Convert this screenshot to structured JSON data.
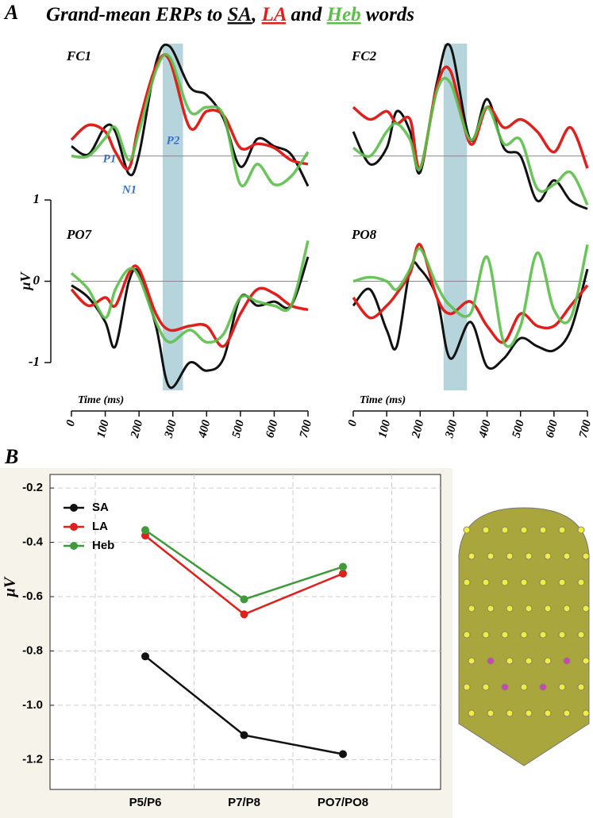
{
  "figure": {
    "panel_a_label": "A",
    "title_parts": [
      "Grand-mean ERPs to ",
      "SA",
      ", ",
      "LA",
      " and ",
      "Heb",
      " words"
    ],
    "panel_b_label": "B"
  },
  "chart_data": [
    {
      "type": "erp",
      "title": "FC1",
      "x": [
        0,
        50,
        100,
        130,
        170,
        200,
        250,
        290,
        350,
        400,
        450,
        500,
        550,
        600,
        650,
        700
      ],
      "xlim": [
        0,
        700
      ],
      "ylim": [
        -0.52,
        1.43
      ],
      "reference_line": 0,
      "highlight": [
        270,
        330
      ],
      "annotations": [
        "P1",
        "N1",
        "P2"
      ],
      "series": [
        {
          "name": "SA",
          "color": "#111111",
          "values": [
            0.12,
            0.02,
            0.36,
            0.3,
            -0.22,
            0.02,
            1.14,
            1.35,
            0.85,
            0.75,
            0.46,
            -0.13,
            0.21,
            0.12,
            0.02,
            -0.37
          ]
        },
        {
          "name": "LA",
          "color": "#e0201c",
          "values": [
            0.2,
            0.38,
            0.3,
            0.05,
            -0.15,
            0.4,
            1.1,
            1.18,
            0.35,
            0.55,
            0.5,
            0.1,
            0.15,
            0.1,
            -0.05,
            -0.1
          ]
        },
        {
          "name": "Heb",
          "color": "#5cbf4a",
          "values": [
            0.0,
            0.0,
            0.22,
            0.35,
            -0.05,
            0.3,
            1.05,
            1.22,
            0.55,
            0.6,
            0.5,
            -0.35,
            -0.1,
            -0.35,
            -0.25,
            0.05
          ]
        }
      ]
    },
    {
      "type": "erp",
      "title": "FC2",
      "x": [
        0,
        50,
        100,
        130,
        170,
        200,
        250,
        290,
        350,
        400,
        450,
        500,
        550,
        600,
        650,
        700
      ],
      "xlim": [
        0,
        700
      ],
      "ylim": [
        -0.52,
        1.43
      ],
      "reference_line": 0,
      "highlight": [
        270,
        340
      ],
      "series": [
        {
          "name": "SA",
          "color": "#111111",
          "values": [
            0.3,
            -0.1,
            0.1,
            0.55,
            0.3,
            -0.2,
            0.9,
            1.35,
            0.2,
            0.7,
            0.1,
            0.0,
            -0.55,
            -0.3,
            -0.55,
            -0.65
          ]
        },
        {
          "name": "LA",
          "color": "#e0201c",
          "values": [
            0.6,
            0.45,
            0.55,
            0.4,
            0.45,
            -0.15,
            0.85,
            1.05,
            0.15,
            0.6,
            0.35,
            0.45,
            0.3,
            0.05,
            0.35,
            -0.15
          ]
        },
        {
          "name": "Heb",
          "color": "#5cbf4a",
          "values": [
            0.1,
            0.0,
            0.3,
            0.4,
            0.2,
            -0.15,
            0.8,
            0.9,
            0.2,
            0.6,
            0.15,
            0.2,
            -0.4,
            -0.35,
            -0.2,
            -0.6
          ]
        }
      ]
    },
    {
      "type": "erp",
      "title": "PO7",
      "x": [
        0,
        50,
        100,
        130,
        170,
        200,
        250,
        290,
        350,
        400,
        450,
        500,
        550,
        600,
        650,
        700
      ],
      "xlim": [
        0,
        700
      ],
      "ylim": [
        -1.42,
        1.02
      ],
      "reference_line": 0,
      "highlight": [
        270,
        330
      ],
      "yticks": [
        -1,
        0,
        1
      ],
      "ylabel": "μV",
      "xticks": [
        0,
        100,
        200,
        300,
        400,
        500,
        600,
        700
      ],
      "xlabel": "Time (ms)",
      "series": [
        {
          "name": "SA",
          "color": "#111111",
          "values": [
            -0.05,
            -0.2,
            -0.5,
            -0.8,
            0.0,
            0.1,
            -0.55,
            -1.3,
            -1.0,
            -1.1,
            -0.95,
            -0.2,
            -0.3,
            -0.25,
            -0.3,
            0.3
          ]
        },
        {
          "name": "LA",
          "color": "#e0201c",
          "values": [
            -0.1,
            -0.3,
            -0.2,
            -0.3,
            0.1,
            0.15,
            -0.4,
            -0.6,
            -0.55,
            -0.55,
            -0.8,
            -0.4,
            -0.1,
            -0.15,
            -0.3,
            -0.35
          ]
        },
        {
          "name": "Heb",
          "color": "#5cbf4a",
          "values": [
            0.1,
            -0.1,
            -0.45,
            -0.1,
            0.15,
            0.05,
            -0.5,
            -0.75,
            -0.6,
            -0.75,
            -0.65,
            -0.2,
            -0.25,
            -0.3,
            -0.3,
            0.5
          ]
        }
      ]
    },
    {
      "type": "erp",
      "title": "PO8",
      "x": [
        0,
        50,
        100,
        130,
        170,
        200,
        250,
        290,
        350,
        400,
        450,
        500,
        550,
        600,
        650,
        700
      ],
      "xlim": [
        0,
        700
      ],
      "ylim": [
        -1.42,
        1.02
      ],
      "reference_line": 0,
      "highlight": [
        270,
        340
      ],
      "xticks": [
        0,
        100,
        200,
        300,
        400,
        500,
        600,
        700
      ],
      "xlabel": "Time (ms)",
      "series": [
        {
          "name": "SA",
          "color": "#111111",
          "values": [
            -0.3,
            -0.1,
            -0.6,
            -0.8,
            0.15,
            0.15,
            -0.2,
            -0.95,
            -0.5,
            -1.05,
            -0.95,
            -0.7,
            -0.8,
            -0.85,
            -0.6,
            0.15
          ]
        },
        {
          "name": "LA",
          "color": "#e0201c",
          "values": [
            -0.2,
            -0.45,
            -0.3,
            -0.15,
            0.1,
            0.45,
            -0.2,
            -0.4,
            -0.25,
            -0.55,
            -0.75,
            -0.4,
            -0.55,
            -0.55,
            -0.3,
            -0.05
          ]
        },
        {
          "name": "Heb",
          "color": "#5cbf4a",
          "values": [
            0.0,
            0.05,
            0.0,
            -0.1,
            0.15,
            0.4,
            -0.05,
            -0.3,
            -0.4,
            0.3,
            -0.75,
            -0.55,
            0.35,
            -0.35,
            -0.45,
            0.45
          ]
        }
      ]
    },
    {
      "type": "line",
      "categories": [
        "P5/P6",
        "P7/P8",
        "PO7/PO8"
      ],
      "ylabel": "μV",
      "ylim": [
        -1.31,
        -0.15
      ],
      "yticks": [
        -0.2,
        -0.4,
        -0.6,
        -0.8,
        {
          "value": -1,
          "label": "-1.0"
        },
        -1.2
      ],
      "grid": true,
      "legend": "upper left",
      "series": [
        {
          "name": "SA",
          "color": "#111111",
          "values": [
            -0.82,
            -1.11,
            -1.18
          ]
        },
        {
          "name": "LA",
          "color": "#e0201c",
          "values": [
            -0.375,
            -0.665,
            -0.515
          ]
        },
        {
          "name": "Heb",
          "color": "#3f9a3a",
          "values": [
            -0.355,
            -0.61,
            -0.49
          ]
        }
      ]
    }
  ]
}
